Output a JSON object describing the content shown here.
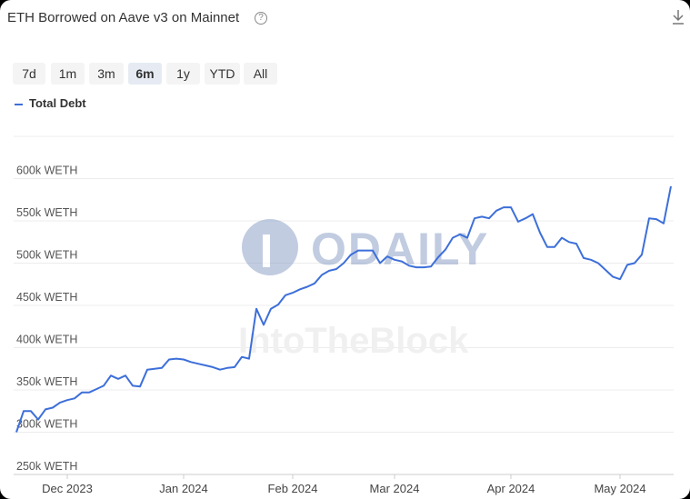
{
  "chart_data": {
    "type": "line",
    "title": "ETH Borrowed on Aave v3 on Mainnet",
    "range_buttons": [
      "7d",
      "1m",
      "3m",
      "6m",
      "1y",
      "YTD",
      "All"
    ],
    "selected_range": "6m",
    "watermarks": [
      "ODAILY",
      "IntoTheBlock"
    ],
    "categories": [
      null,
      null,
      null,
      null,
      null,
      null,
      null,
      "Dec 2023",
      null,
      null,
      null,
      null,
      null,
      null,
      null,
      null,
      null,
      null,
      null,
      null,
      null,
      null,
      null,
      "Jan 2024",
      null,
      null,
      null,
      null,
      null,
      null,
      null,
      null,
      null,
      null,
      null,
      null,
      null,
      null,
      "Feb 2024",
      null,
      null,
      null,
      null,
      null,
      null,
      null,
      null,
      null,
      null,
      null,
      null,
      null,
      "Mar 2024",
      null,
      null,
      null,
      null,
      null,
      null,
      null,
      null,
      null,
      null,
      null,
      null,
      null,
      null,
      null,
      "Apr 2024",
      null,
      null,
      null,
      null,
      null,
      null,
      null,
      null,
      null,
      null,
      null,
      null,
      null,
      null,
      "May 2024",
      null,
      null,
      null,
      null,
      null,
      null,
      null
    ],
    "series": [
      {
        "name": "Total Debt",
        "color": "#3d6fd9",
        "values": [
          300000,
          325000,
          325000,
          315000,
          327000,
          329000,
          335000,
          338000,
          340000,
          347000,
          347000,
          351000,
          355000,
          367000,
          363000,
          367000,
          355000,
          354000,
          374000,
          375000,
          376000,
          386000,
          387000,
          386000,
          383000,
          381000,
          379000,
          377000,
          374000,
          376000,
          377000,
          389000,
          387000,
          446000,
          427000,
          446000,
          451000,
          462000,
          465000,
          469000,
          472000,
          476000,
          486000,
          491000,
          493000,
          500000,
          510000,
          515000,
          515000,
          515000,
          500000,
          508000,
          504000,
          502000,
          497000,
          495000,
          495000,
          496000,
          507000,
          516000,
          530000,
          534000,
          530000,
          553000,
          555000,
          553000,
          562000,
          566000,
          566000,
          549000,
          553000,
          558000,
          536000,
          519000,
          519000,
          530000,
          525000,
          523000,
          506000,
          504000,
          500000,
          492000,
          484000,
          481000,
          498000,
          500000,
          510000,
          553000,
          552000,
          547000,
          591000
        ]
      }
    ],
    "ylim": [
      250000,
      650000
    ],
    "yticks": [
      {
        "value": 250000,
        "label": "250k WETH"
      },
      {
        "value": 300000,
        "label": "300k WETH"
      },
      {
        "value": 350000,
        "label": "350k WETH"
      },
      {
        "value": 400000,
        "label": "400k WETH"
      },
      {
        "value": 450000,
        "label": "450k WETH"
      },
      {
        "value": 500000,
        "label": "500k WETH"
      },
      {
        "value": 550000,
        "label": "550k WETH"
      },
      {
        "value": 600000,
        "label": "600k WETH"
      }
    ],
    "grid": true
  }
}
